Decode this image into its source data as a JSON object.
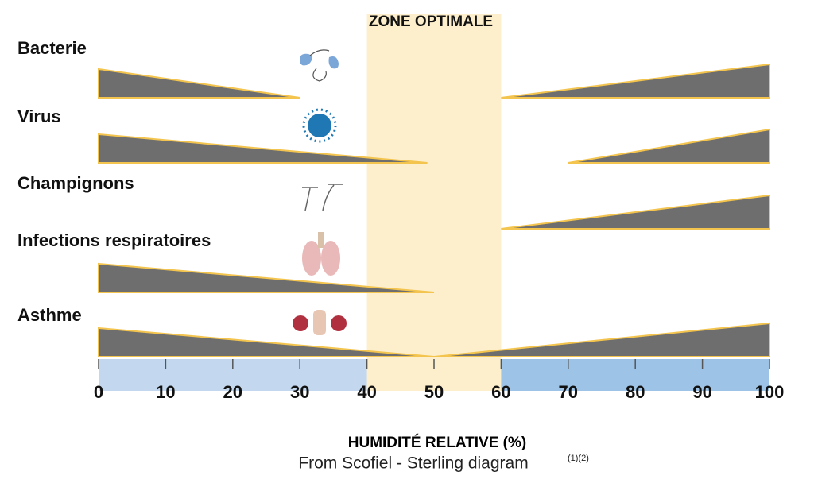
{
  "chart_data": {
    "type": "wedge",
    "zone_label": "ZONE OPTIMALE",
    "zone": [
      40,
      60
    ],
    "zone_color": "#fdefcc",
    "band_colors": [
      "#c3d8ee",
      "#9dc3e6"
    ],
    "wedge_color": "#6e6e6e",
    "wedge_edge": "#f3c44e",
    "rows": [
      {
        "name": "Bacterie",
        "left": [
          0,
          30
        ],
        "right": [
          60,
          100
        ]
      },
      {
        "name": "Virus",
        "left": [
          0,
          49
        ],
        "right": [
          70,
          100
        ]
      },
      {
        "name": "Champignons",
        "right": [
          60,
          100
        ]
      },
      {
        "name": "Infections respiratoires",
        "left": [
          0,
          50
        ]
      },
      {
        "name": "Asthme",
        "left": [
          0,
          50
        ],
        "right": [
          50,
          100
        ]
      }
    ],
    "xlim": [
      0,
      100
    ],
    "xticks": [
      0,
      10,
      20,
      30,
      40,
      50,
      60,
      70,
      80,
      90,
      100
    ],
    "xlabel": "HUMIDITÉ RELATIVE (%)",
    "source": "From Scofiel - Sterling diagram",
    "source_note": "(1)(2)"
  }
}
